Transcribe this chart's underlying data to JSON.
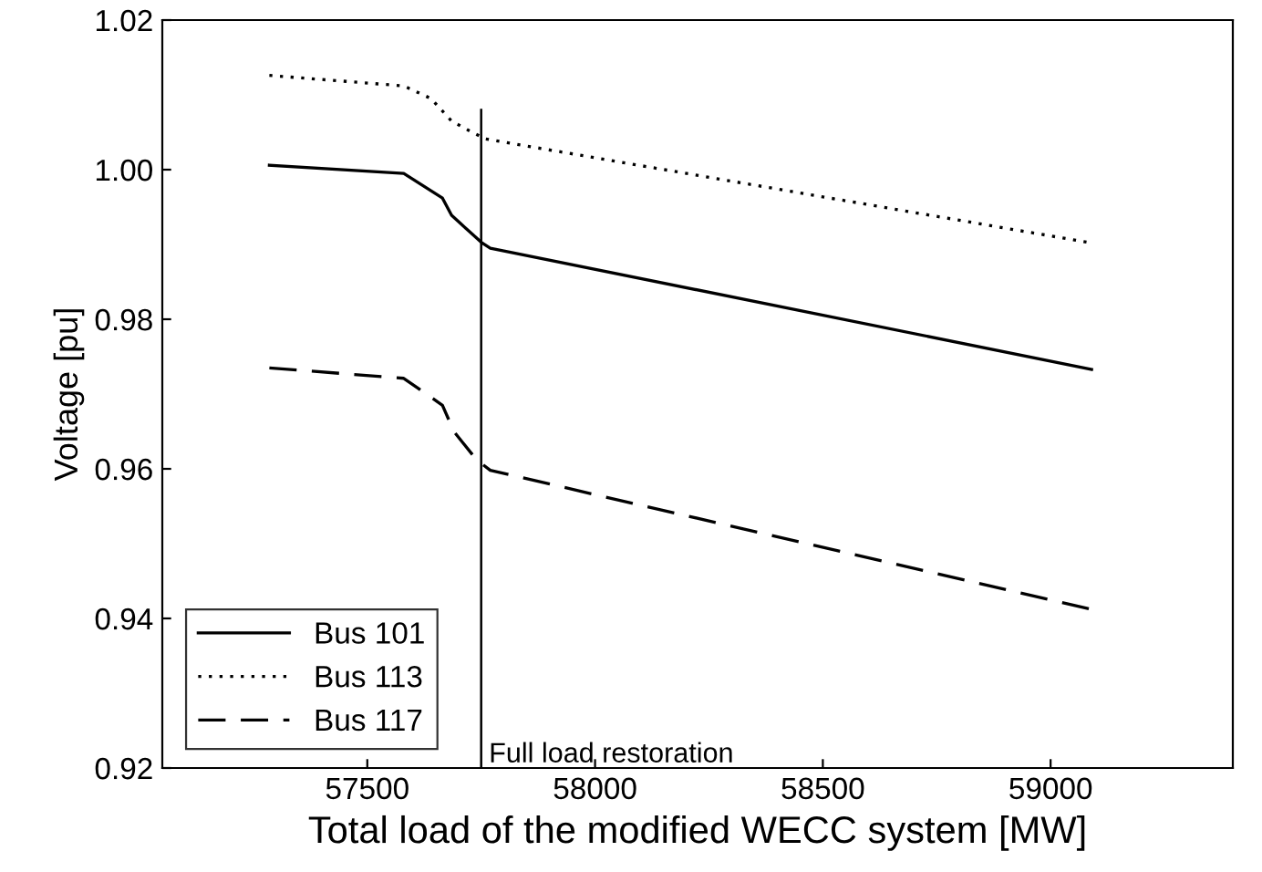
{
  "chart_data": {
    "type": "line",
    "xlabel": "Total load of the modified WECC system [MW]",
    "ylabel": "Voltage [pu]",
    "xlim": [
      57050,
      59400
    ],
    "xticks": [
      57500,
      58000,
      58500,
      59000
    ],
    "ylim": [
      0.92,
      1.02
    ],
    "yticks": [
      {
        "value": 0.92,
        "label": "0.92"
      },
      {
        "value": 0.94,
        "label": "0.94"
      },
      {
        "value": 0.96,
        "label": "0.96"
      },
      {
        "value": 0.98,
        "label": "0.98"
      },
      {
        "value": 1.0,
        "label": "1.00"
      },
      {
        "value": 1.02,
        "label": "1.02"
      }
    ],
    "grid": false,
    "legend": "bottom left",
    "series": [
      {
        "name": "Bus 101",
        "color": "#000000",
        "line_style": "solid",
        "x": [
          57285,
          57580,
          57665,
          57685,
          57750,
          57770,
          59090
        ],
        "values": [
          1.0006,
          0.9995,
          0.9962,
          0.9939,
          0.9903,
          0.9895,
          0.9733
        ]
      },
      {
        "name": "Bus 113",
        "color": "#000000",
        "line_style": "dotted",
        "x": [
          57285,
          57580,
          57640,
          57685,
          57730,
          57760,
          59090
        ],
        "values": [
          1.0126,
          1.0112,
          1.0095,
          1.0065,
          1.005,
          1.0041,
          0.9902
        ]
      },
      {
        "name": "Bus 117",
        "color": "#000000",
        "line_style": "dashed",
        "x": [
          57285,
          57580,
          57665,
          57690,
          57740,
          57770,
          59090
        ],
        "values": [
          0.9735,
          0.9721,
          0.9685,
          0.965,
          0.9612,
          0.9598,
          0.9412
        ]
      }
    ],
    "ref_lines": [
      {
        "axis": "x",
        "value": 57750,
        "label": "Full load restoration",
        "color": "#000000",
        "line_style": "solid"
      }
    ]
  }
}
